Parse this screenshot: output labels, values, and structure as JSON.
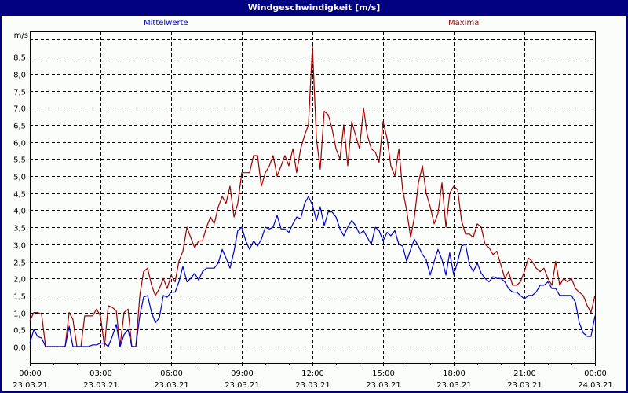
{
  "window": {
    "title": "Windgeschwindigkeit [m/s]"
  },
  "legend": {
    "mean_label": "Mittelwerte",
    "max_label": "Maxima",
    "mean_color": "#0000cc",
    "max_color": "#a00000"
  },
  "colors": {
    "title_bg": "#000080",
    "plot_bg": "#fbfdfb",
    "grid": "#000000"
  },
  "chart_data": {
    "type": "line",
    "title": "Windgeschwindigkeit [m/s]",
    "ylabel": "m/s",
    "xlabel": "",
    "ylim": [
      0,
      9
    ],
    "grid": true,
    "y_ticks": [
      "0,0",
      "0,5",
      "1,0",
      "1,5",
      "2,0",
      "2,5",
      "3,0",
      "3,5",
      "4,0",
      "4,5",
      "5,0",
      "5,5",
      "6,0",
      "6,5",
      "7,0",
      "7,5",
      "8,0",
      "8,5"
    ],
    "x_ticks": [
      {
        "time": "00:00",
        "date": "23.03.21"
      },
      {
        "time": "03:00",
        "date": "23.03.21"
      },
      {
        "time": "06:00",
        "date": "23.03.21"
      },
      {
        "time": "09:00",
        "date": "23.03.21"
      },
      {
        "time": "12:00",
        "date": "23.03.21"
      },
      {
        "time": "15:00",
        "date": "23.03.21"
      },
      {
        "time": "18:00",
        "date": "23.03.21"
      },
      {
        "time": "21:00",
        "date": "23.03.21"
      },
      {
        "time": "00:00",
        "date": "24.03.21"
      }
    ],
    "x_hours_start": 0,
    "x_hours_end": 24,
    "legend_position": "top",
    "series": [
      {
        "name": "Mittelwerte",
        "color": "#0000cc",
        "x_hours": [
          0,
          0.17,
          0.33,
          0.5,
          0.67,
          0.83,
          1.0,
          1.17,
          1.33,
          1.5,
          1.67,
          1.83,
          2.0,
          2.17,
          2.33,
          2.5,
          2.67,
          2.83,
          3.0,
          3.17,
          3.33,
          3.5,
          3.67,
          3.83,
          4.0,
          4.17,
          4.33,
          4.5,
          4.67,
          4.83,
          5.0,
          5.17,
          5.33,
          5.5,
          5.67,
          5.83,
          6.0,
          6.17,
          6.33,
          6.5,
          6.67,
          6.83,
          7.0,
          7.17,
          7.33,
          7.5,
          7.67,
          7.83,
          8.0,
          8.17,
          8.33,
          8.5,
          8.67,
          8.83,
          9.0,
          9.17,
          9.33,
          9.5,
          9.67,
          9.83,
          10.0,
          10.17,
          10.33,
          10.5,
          10.67,
          10.83,
          11.0,
          11.17,
          11.33,
          11.5,
          11.67,
          11.83,
          12.0,
          12.17,
          12.33,
          12.5,
          12.67,
          12.83,
          13.0,
          13.17,
          13.33,
          13.5,
          13.67,
          13.83,
          14.0,
          14.17,
          14.33,
          14.5,
          14.67,
          14.83,
          15.0,
          15.17,
          15.33,
          15.5,
          15.67,
          15.83,
          16.0,
          16.17,
          16.33,
          16.5,
          16.67,
          16.83,
          17.0,
          17.17,
          17.33,
          17.5,
          17.67,
          17.83,
          18.0,
          18.17,
          18.33,
          18.5,
          18.67,
          18.83,
          19.0,
          19.17,
          19.33,
          19.5,
          19.67,
          19.83,
          20.0,
          20.17,
          20.33,
          20.5,
          20.67,
          20.83,
          21.0,
          21.17,
          21.33,
          21.5,
          21.67,
          21.83,
          22.0,
          22.17,
          22.33,
          22.5,
          22.67,
          22.83,
          23.0,
          23.17,
          23.33,
          23.5,
          23.67,
          23.83,
          24.0
        ],
        "values": [
          0.1,
          0.5,
          0.3,
          0.25,
          0.0,
          0.0,
          0.0,
          0.0,
          0.0,
          0.0,
          0.6,
          0.0,
          0.0,
          0.0,
          0.0,
          0.0,
          0.05,
          0.05,
          0.1,
          0.1,
          0.0,
          0.3,
          0.65,
          0.0,
          0.35,
          0.5,
          0.0,
          0.0,
          0.9,
          1.45,
          1.5,
          1.0,
          0.7,
          0.85,
          1.5,
          1.45,
          1.6,
          1.6,
          1.9,
          2.35,
          1.9,
          2.0,
          2.15,
          1.95,
          2.2,
          2.3,
          2.3,
          2.3,
          2.45,
          2.85,
          2.6,
          2.3,
          2.8,
          3.4,
          3.5,
          3.1,
          2.85,
          3.1,
          2.95,
          3.15,
          3.5,
          3.45,
          3.5,
          3.85,
          3.45,
          3.45,
          3.35,
          3.6,
          3.8,
          3.75,
          4.2,
          4.4,
          4.15,
          3.7,
          4.1,
          3.55,
          3.95,
          3.95,
          3.8,
          3.45,
          3.25,
          3.5,
          3.7,
          3.55,
          3.3,
          3.4,
          3.2,
          3.0,
          3.5,
          3.4,
          3.1,
          3.35,
          3.25,
          3.4,
          3.0,
          2.95,
          2.5,
          2.85,
          3.15,
          2.95,
          2.7,
          2.55,
          2.1,
          2.5,
          2.85,
          2.55,
          2.1,
          2.75,
          2.1,
          2.5,
          2.95,
          3.0,
          2.4,
          2.2,
          2.45,
          2.15,
          2.0,
          1.9,
          2.05,
          2.0,
          2.0,
          1.9,
          1.7,
          1.6,
          1.6,
          1.5,
          1.4,
          1.5,
          1.5,
          1.6,
          1.8,
          1.8,
          1.9,
          1.7,
          1.7,
          1.5,
          1.5,
          1.5,
          1.5,
          1.3,
          0.7,
          0.4,
          0.3,
          0.3,
          0.9,
          0.8,
          0.5,
          0.1,
          0.1,
          0.6,
          1.05
        ]
      },
      {
        "name": "Maxima",
        "color": "#a00000",
        "x_hours": [
          0,
          0.17,
          0.33,
          0.5,
          0.67,
          0.83,
          1.0,
          1.17,
          1.33,
          1.5,
          1.67,
          1.83,
          2.0,
          2.17,
          2.33,
          2.5,
          2.67,
          2.83,
          3.0,
          3.17,
          3.33,
          3.5,
          3.67,
          3.83,
          4.0,
          4.17,
          4.33,
          4.5,
          4.67,
          4.83,
          5.0,
          5.17,
          5.33,
          5.5,
          5.67,
          5.83,
          6.0,
          6.17,
          6.33,
          6.5,
          6.67,
          6.83,
          7.0,
          7.17,
          7.33,
          7.5,
          7.67,
          7.83,
          8.0,
          8.17,
          8.33,
          8.5,
          8.67,
          8.83,
          9.0,
          9.17,
          9.33,
          9.5,
          9.67,
          9.83,
          10.0,
          10.17,
          10.33,
          10.5,
          10.67,
          10.83,
          11.0,
          11.17,
          11.33,
          11.5,
          11.67,
          11.83,
          12.0,
          12.17,
          12.33,
          12.5,
          12.67,
          12.83,
          13.0,
          13.17,
          13.33,
          13.5,
          13.67,
          13.83,
          14.0,
          14.17,
          14.33,
          14.5,
          14.67,
          14.83,
          15.0,
          15.17,
          15.33,
          15.5,
          15.67,
          15.83,
          16.0,
          16.17,
          16.33,
          16.5,
          16.67,
          16.83,
          17.0,
          17.17,
          17.33,
          17.5,
          17.67,
          17.83,
          18.0,
          18.17,
          18.33,
          18.5,
          18.67,
          18.83,
          19.0,
          19.17,
          19.33,
          19.5,
          19.67,
          19.83,
          20.0,
          20.17,
          20.33,
          20.5,
          20.67,
          20.83,
          21.0,
          21.17,
          21.33,
          21.5,
          21.67,
          21.83,
          22.0,
          22.17,
          22.33,
          22.5,
          22.67,
          22.83,
          23.0,
          23.17,
          23.33,
          23.5,
          23.67,
          23.83,
          24.0
        ],
        "values": [
          0.75,
          1.0,
          1.0,
          0.95,
          0.0,
          0.0,
          0.0,
          0.0,
          0.0,
          0.0,
          1.0,
          0.8,
          0.0,
          0.0,
          0.9,
          0.9,
          0.9,
          1.1,
          0.9,
          0.0,
          1.2,
          1.15,
          1.05,
          0.0,
          1.0,
          1.1,
          0.0,
          0.0,
          1.5,
          2.2,
          2.3,
          1.8,
          1.5,
          1.7,
          2.0,
          1.7,
          2.1,
          1.9,
          2.5,
          2.8,
          3.5,
          3.2,
          2.9,
          3.1,
          3.1,
          3.5,
          3.8,
          3.6,
          4.1,
          4.4,
          4.2,
          4.7,
          3.8,
          4.2,
          5.1,
          5.1,
          5.1,
          5.6,
          5.6,
          4.7,
          5.1,
          5.3,
          5.6,
          5.0,
          5.3,
          5.6,
          5.3,
          5.8,
          5.1,
          5.8,
          6.2,
          6.5,
          8.8,
          6.1,
          5.2,
          6.9,
          6.8,
          6.4,
          5.8,
          5.5,
          6.5,
          5.3,
          6.6,
          6.2,
          5.8,
          7.0,
          6.2,
          5.8,
          5.7,
          5.4,
          6.6,
          6.1,
          5.3,
          5.0,
          5.8,
          4.6,
          4.0,
          3.2,
          3.8,
          4.8,
          5.3,
          4.5,
          4.1,
          3.6,
          3.9,
          4.8,
          3.5,
          4.5,
          4.7,
          4.6,
          3.7,
          3.3,
          3.3,
          3.2,
          3.6,
          3.5,
          3.0,
          2.9,
          2.7,
          2.8,
          2.4,
          2.0,
          2.2,
          1.8,
          1.8,
          1.9,
          2.2,
          2.6,
          2.5,
          2.3,
          2.2,
          2.3,
          2.0,
          1.8,
          2.5,
          1.8,
          2.0,
          1.9,
          2.0,
          1.7,
          1.6,
          1.5,
          1.2,
          1.0,
          1.5,
          2.0,
          1.5,
          1.0,
          0.8,
          1.2,
          1.6
        ]
      }
    ]
  }
}
